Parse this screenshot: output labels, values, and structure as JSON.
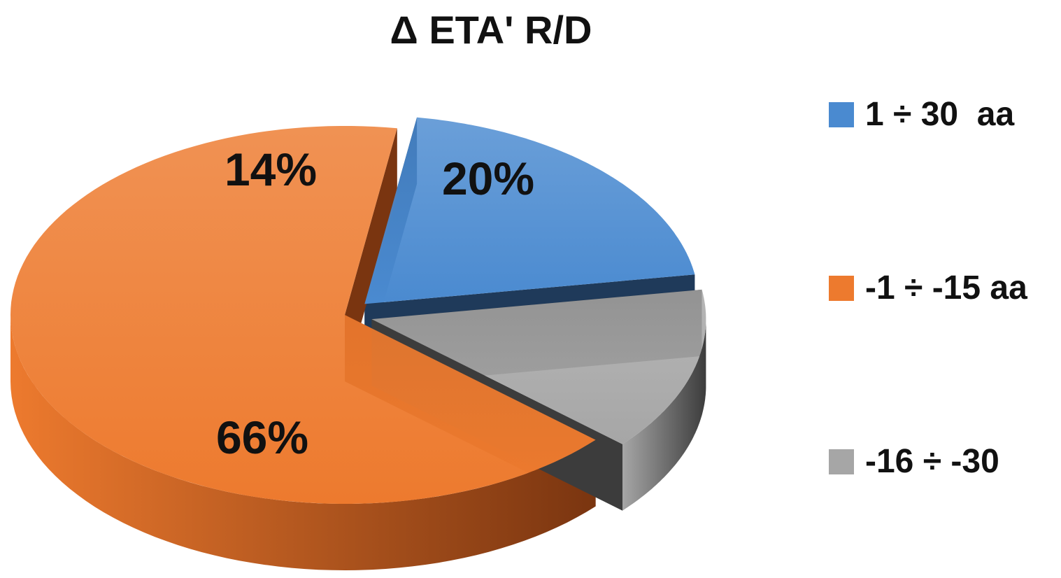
{
  "chart_data": {
    "type": "pie",
    "title": "Δ ETA' R/D",
    "categories": [
      "1 ÷ 30  aa",
      "-1 ÷ -15 aa",
      "-16 ÷ -30"
    ],
    "values": [
      20,
      66,
      14
    ],
    "value_labels": [
      "20%",
      "66%",
      "14%"
    ],
    "colors": [
      "#4A8AD0",
      "#ED7A2E",
      "#A6A6A6"
    ],
    "side_colors": [
      "#1F3A5A",
      "#7A3510",
      "#3C3C3C"
    ],
    "style": "3d-exploded",
    "legend": "right"
  }
}
